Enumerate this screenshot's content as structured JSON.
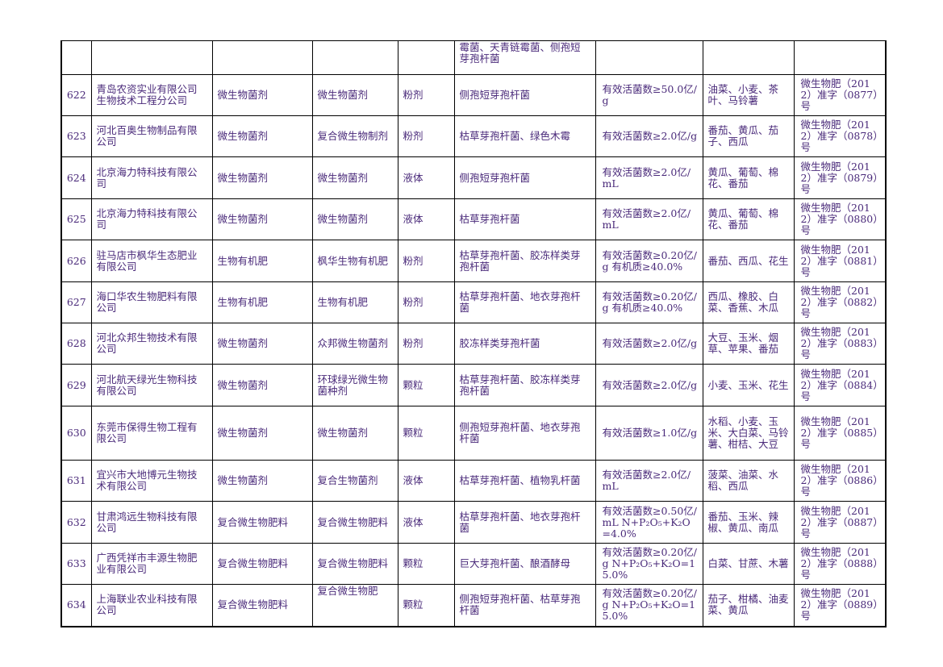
{
  "table": {
    "continuation_row": {
      "strains": "霉菌、天青链霉菌、侧孢短芽孢杆菌"
    },
    "rows": [
      {
        "no": "622",
        "company": "青岛农资实业有限公司生物技术工程分公司",
        "category": "微生物菌剂",
        "product": "微生物菌剂",
        "form": "粉剂",
        "strains": "侧孢短芽孢杆菌",
        "content": "有效活菌数≥50.0亿/g",
        "crops": "油菜、小麦、茶叶、马铃薯",
        "cert": "微生物肥（2012）准字（0877）号"
      },
      {
        "no": "623",
        "company": "河北百奥生物制品有限公司",
        "category": "微生物菌剂",
        "product": "复合微生物制剂",
        "form": "粉剂",
        "strains": "枯草芽孢杆菌、绿色木霉",
        "content": "有效活菌数≥2.0亿/g",
        "crops": "番茄、黄瓜、茄子、西瓜",
        "cert": "微生物肥（2012）准字（0878）号"
      },
      {
        "no": "624",
        "company": "北京海力特科技有限公司",
        "category": "微生物菌剂",
        "product": "微生物菌剂",
        "form": "液体",
        "strains": "侧孢短芽孢杆菌",
        "content": "有效活菌数≥2.0亿/mL",
        "crops": "黄瓜、葡萄、棉花、番茄",
        "cert": "微生物肥（2012）准字（0879）号"
      },
      {
        "no": "625",
        "company": "北京海力特科技有限公司",
        "category": "微生物菌剂",
        "product": "微生物菌剂",
        "form": "液体",
        "strains": "枯草芽孢杆菌",
        "content": "有效活菌数≥2.0亿/mL",
        "crops": "黄瓜、葡萄、棉花、番茄",
        "cert": "微生物肥（2012）准字（0880）号"
      },
      {
        "no": "626",
        "company": "驻马店市枫华生态肥业有限公司",
        "category": "生物有机肥",
        "product": "枫华生物有机肥",
        "form": "粉剂",
        "strains": "枯草芽孢杆菌、胶冻样类芽孢杆菌",
        "content": "有效活菌数≥0.20亿/g 有机质≥40.0%",
        "crops": "番茄、西瓜、花生",
        "cert": "微生物肥（2012）准字（0881）号"
      },
      {
        "no": "627",
        "company": "海口华农生物肥料有限公司",
        "category": "生物有机肥",
        "product": "生物有机肥",
        "form": "粉剂",
        "strains": "枯草芽孢杆菌、地衣芽孢杆菌",
        "content": "有效活菌数≥0.20亿/g 有机质≥40.0%",
        "crops": "西瓜、橡胶、白菜、香蕉、木瓜",
        "cert": "微生物肥（2012）准字（0882）号"
      },
      {
        "no": "628",
        "company": "河北众邦生物技术有限公司",
        "category": "微生物菌剂",
        "product": "众邦微生物菌剂",
        "form": "粉剂",
        "strains": "胶冻样类芽孢杆菌",
        "content": "有效活菌数≥2.0亿/g",
        "crops": "大豆、玉米、烟草、苹果、番茄",
        "cert": "微生物肥（2012）准字（0883）号"
      },
      {
        "no": "629",
        "company": "河北航天绿光生物科技有限公司",
        "category": "微生物菌剂",
        "product": "环球绿光微生物菌种剂",
        "form": "颗粒",
        "strains": "枯草芽孢杆菌、胶冻样类芽孢杆菌",
        "content": "有效活菌数≥2.0亿/g",
        "crops": "小麦、玉米、花生",
        "cert": "微生物肥（2012）准字（0884）号"
      },
      {
        "no": "630",
        "company": "东莞市保得生物工程有限公司",
        "category": "微生物菌剂",
        "product": "微生物菌剂",
        "form": "颗粒",
        "strains": "侧孢短芽孢杆菌、地衣芽孢杆菌",
        "content": "有效活菌数≥1.0亿/g",
        "crops": "水稻、小麦、玉米、大白菜、马铃薯、柑桔、大豆",
        "cert": "微生物肥（2012）准字（0885）号"
      },
      {
        "no": "631",
        "company": "宜兴市大地博元生物技术有限公司",
        "category": "微生物菌剂",
        "product": "复合生物菌剂",
        "form": "液体",
        "strains": "枯草芽孢杆菌、植物乳杆菌",
        "content": "有效活菌数≥2.0亿/mL",
        "crops": "菠菜、油菜、水稻、西瓜",
        "cert": "微生物肥（2012）准字（0886）号"
      },
      {
        "no": "632",
        "company": "甘肃鸿远生物科技有限公司",
        "category": "复合微生物肥料",
        "product": "复合微生物肥料",
        "form": "液体",
        "strains": "枯草芽孢杆菌、地衣芽孢杆菌",
        "content": "有效活菌数≥0.50亿/mL N+P₂O₅+K₂O=4.0%",
        "crops": "番茄、玉米、辣椒、黄瓜、南瓜",
        "cert": "微生物肥（2012）准字（0887）号"
      },
      {
        "no": "633",
        "company": "广西凭祥市丰源生物肥业有限公司",
        "category": "复合微生物肥料",
        "product": "复合微生物肥料",
        "form": "颗粒",
        "strains": "巨大芽孢杆菌、酿酒酵母",
        "content": "有效活菌数≥0.20亿/g N+P₂O₅+K₂O=15.0%",
        "crops": "白菜、甘蔗、木薯",
        "cert": "微生物肥（2012）准字（0888）号"
      },
      {
        "no": "634",
        "company": "上海联业农业科技有限公司",
        "category": "复合微生物肥料",
        "product": "复合微生物肥",
        "form": "颗粒",
        "strains": "侧孢短芽孢杆菌、枯草芽孢杆菌",
        "content": "有效活菌数≥0.20亿/g N+P₂O₅+K₂O=15.0%",
        "crops": "茄子、柑橘、油麦菜、黄瓜",
        "cert": "微生物肥（2012）准字（0889）号"
      }
    ]
  }
}
